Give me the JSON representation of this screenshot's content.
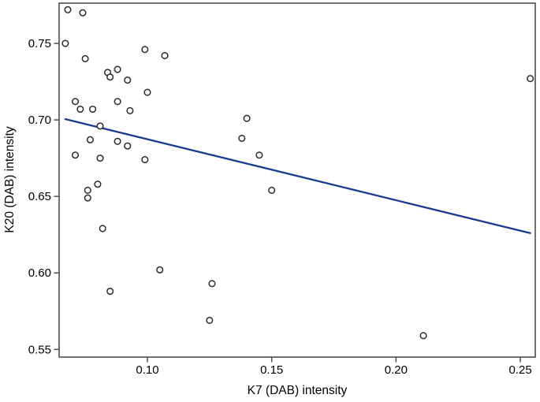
{
  "figure": {
    "background": "#ffffff",
    "frame_color": "#4d4d4d",
    "tick_color": "#4d4d4d",
    "text_color": "#000000"
  },
  "chart_data": {
    "type": "scatter",
    "title": "",
    "xlabel": "K7 (DAB) intensity",
    "ylabel": "K20 (DAB) intensity",
    "xlim": [
      0.0645,
      0.256
    ],
    "ylim": [
      0.545,
      0.7763
    ],
    "grid": false,
    "legend": "none",
    "x_ticks": [
      {
        "value": 0.1,
        "label": "0.10"
      },
      {
        "value": 0.15,
        "label": "0.15"
      },
      {
        "value": 0.2,
        "label": "0.20"
      },
      {
        "value": 0.25,
        "label": "0.25"
      }
    ],
    "y_ticks": [
      {
        "value": 0.55,
        "label": "0.55"
      },
      {
        "value": 0.6,
        "label": "0.60"
      },
      {
        "value": 0.65,
        "label": "0.65"
      },
      {
        "value": 0.7,
        "label": "0.70"
      },
      {
        "value": 0.75,
        "label": "0.75"
      }
    ],
    "marker": {
      "shape": "open-circle",
      "stroke": "#2b2b2b",
      "fill": "#ffffff",
      "radius": 3.8,
      "stroke_width": 1.5
    },
    "points": [
      [
        0.068,
        0.772
      ],
      [
        0.074,
        0.77
      ],
      [
        0.067,
        0.75
      ],
      [
        0.075,
        0.74
      ],
      [
        0.099,
        0.746
      ],
      [
        0.107,
        0.742
      ],
      [
        0.084,
        0.731
      ],
      [
        0.088,
        0.733
      ],
      [
        0.085,
        0.728
      ],
      [
        0.092,
        0.726
      ],
      [
        0.1,
        0.718
      ],
      [
        0.071,
        0.712
      ],
      [
        0.073,
        0.707
      ],
      [
        0.078,
        0.707
      ],
      [
        0.088,
        0.712
      ],
      [
        0.093,
        0.706
      ],
      [
        0.081,
        0.696
      ],
      [
        0.077,
        0.687
      ],
      [
        0.088,
        0.686
      ],
      [
        0.092,
        0.683
      ],
      [
        0.071,
        0.677
      ],
      [
        0.081,
        0.675
      ],
      [
        0.099,
        0.674
      ],
      [
        0.08,
        0.658
      ],
      [
        0.076,
        0.654
      ],
      [
        0.076,
        0.649
      ],
      [
        0.082,
        0.629
      ],
      [
        0.14,
        0.701
      ],
      [
        0.138,
        0.688
      ],
      [
        0.145,
        0.677
      ],
      [
        0.15,
        0.654
      ],
      [
        0.105,
        0.602
      ],
      [
        0.085,
        0.588
      ],
      [
        0.126,
        0.593
      ],
      [
        0.125,
        0.569
      ],
      [
        0.254,
        0.727
      ],
      [
        0.211,
        0.559
      ]
    ],
    "trend_line": {
      "color": "#1a3a8f",
      "width": 2.3,
      "x1": 0.067,
      "y1": 0.7005,
      "x2": 0.254,
      "y2": 0.626
    }
  }
}
